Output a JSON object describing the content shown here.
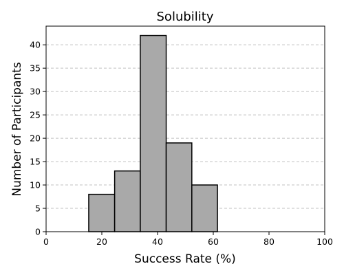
{
  "chart_data": {
    "type": "bar",
    "subtype": "histogram",
    "title": "Solubility",
    "xlabel": "Success Rate (%)",
    "ylabel": "Number of Participants",
    "xlim": [
      0,
      100
    ],
    "ylim": [
      0,
      44
    ],
    "xticks": [
      0,
      20,
      40,
      60,
      80,
      100
    ],
    "yticks": [
      0,
      5,
      10,
      15,
      20,
      25,
      30,
      35,
      40
    ],
    "grid": {
      "y": true,
      "x": false,
      "style": "dashed"
    },
    "bins": [
      {
        "start": 15.3,
        "end": 24.6,
        "count": 8
      },
      {
        "start": 24.6,
        "end": 33.8,
        "count": 13
      },
      {
        "start": 33.8,
        "end": 43.1,
        "count": 42
      },
      {
        "start": 43.1,
        "end": 52.3,
        "count": 19
      },
      {
        "start": 52.3,
        "end": 61.5,
        "count": 10
      }
    ],
    "colors": {
      "bar_fill": "#a9a9a9",
      "bar_edge": "#000000",
      "grid": "#c0c0c0"
    }
  }
}
